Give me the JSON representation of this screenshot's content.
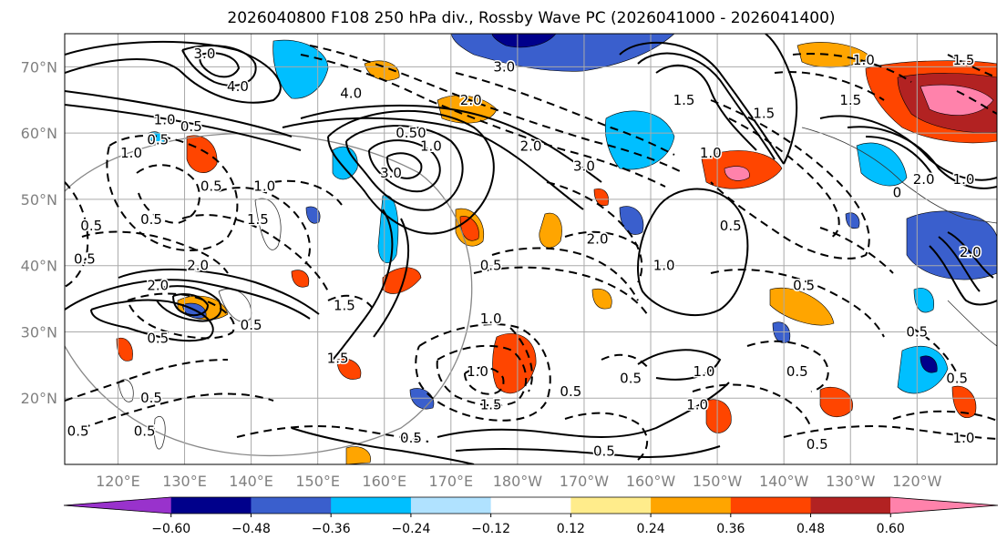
{
  "chart_data": {
    "type": "map-contour",
    "title": "2026040800 F108 250 hPa div., Rossby Wave PC (2026041000 - 2026041400)",
    "x_range_deg_east": [
      112,
      252
    ],
    "y_range_deg_north": [
      10,
      75
    ],
    "lat_ticks": [
      {
        "value": 70,
        "label": "70°N"
      },
      {
        "value": 60,
        "label": "60°N"
      },
      {
        "value": 50,
        "label": "50°N"
      },
      {
        "value": 40,
        "label": "40°N"
      },
      {
        "value": 30,
        "label": "30°N"
      },
      {
        "value": 20,
        "label": "20°N"
      }
    ],
    "lon_ticks": [
      {
        "value": 120,
        "label": "120°E"
      },
      {
        "value": 130,
        "label": "130°E"
      },
      {
        "value": 140,
        "label": "140°E"
      },
      {
        "value": 150,
        "label": "150°E"
      },
      {
        "value": 160,
        "label": "160°E"
      },
      {
        "value": 170,
        "label": "170°E"
      },
      {
        "value": 180,
        "label": "180°W"
      },
      {
        "value": 190,
        "label": "170°W"
      },
      {
        "value": 200,
        "label": "160°W"
      },
      {
        "value": 210,
        "label": "150°W"
      },
      {
        "value": 220,
        "label": "140°W"
      },
      {
        "value": 230,
        "label": "130°W"
      },
      {
        "value": 240,
        "label": "120°W"
      }
    ],
    "colorbar": {
      "colors": [
        "#9932cc",
        "#00008b",
        "#3a5fcd",
        "#00bfff",
        "#b0e2ff",
        "#ffffff",
        "#ffec8b",
        "#ffa500",
        "#ff4500",
        "#b22222",
        "#ff82ab"
      ],
      "ticks": [
        "−0.60",
        "−0.48",
        "−0.36",
        "−0.24",
        "−0.12",
        "0.12",
        "0.24",
        "0.36",
        "0.48",
        "0.60"
      ],
      "extend": "both"
    },
    "contour_labels": [
      {
        "lon": 133,
        "lat": 72,
        "text": "3.0"
      },
      {
        "lon": 138,
        "lat": 67,
        "text": "4.0"
      },
      {
        "lon": 127,
        "lat": 62,
        "text": "1.0"
      },
      {
        "lon": 131,
        "lat": 61,
        "text": "0.5"
      },
      {
        "lon": 122,
        "lat": 57,
        "text": "1.0"
      },
      {
        "lon": 155,
        "lat": 66,
        "text": "4.0"
      },
      {
        "lon": 164,
        "lat": 60,
        "text": "0.50"
      },
      {
        "lon": 167,
        "lat": 58,
        "text": "1.0"
      },
      {
        "lon": 161,
        "lat": 54,
        "text": "3.0"
      },
      {
        "lon": 178,
        "lat": 70,
        "text": "3.0"
      },
      {
        "lon": 173,
        "lat": 65,
        "text": "2.0"
      },
      {
        "lon": 182,
        "lat": 58,
        "text": "2.0"
      },
      {
        "lon": 190,
        "lat": 55,
        "text": "3.0"
      },
      {
        "lon": 205,
        "lat": 65,
        "text": "1.5"
      },
      {
        "lon": 209,
        "lat": 57,
        "text": "1.0"
      },
      {
        "lon": 217,
        "lat": 63,
        "text": "1.5"
      },
      {
        "lon": 232,
        "lat": 71,
        "text": "1.0"
      },
      {
        "lon": 247,
        "lat": 71,
        "text": "1.5"
      },
      {
        "lon": 230,
        "lat": 65,
        "text": "1.5"
      },
      {
        "lon": 237,
        "lat": 51,
        "text": "0"
      },
      {
        "lon": 241,
        "lat": 53,
        "text": "2.0"
      },
      {
        "lon": 247,
        "lat": 53,
        "text": "1.0"
      },
      {
        "lon": 248,
        "lat": 42,
        "text": "2.0"
      },
      {
        "lon": 212,
        "lat": 46,
        "text": "0.5"
      },
      {
        "lon": 202,
        "lat": 40,
        "text": "1.0"
      },
      {
        "lon": 192,
        "lat": 44,
        "text": "2.0"
      },
      {
        "lon": 176,
        "lat": 40,
        "text": "0.5"
      },
      {
        "lon": 176,
        "lat": 32,
        "text": "1.0"
      },
      {
        "lon": 223,
        "lat": 37,
        "text": "0.5"
      },
      {
        "lon": 240,
        "lat": 30,
        "text": "0.5"
      },
      {
        "lon": 246,
        "lat": 23,
        "text": "0.5"
      },
      {
        "lon": 247,
        "lat": 14,
        "text": "1.0"
      },
      {
        "lon": 222,
        "lat": 24,
        "text": "0.5"
      },
      {
        "lon": 208,
        "lat": 24,
        "text": "1.0"
      },
      {
        "lon": 207,
        "lat": 19,
        "text": "1.0"
      },
      {
        "lon": 197,
        "lat": 23,
        "text": "0.5"
      },
      {
        "lon": 188,
        "lat": 21,
        "text": "0.5"
      },
      {
        "lon": 174,
        "lat": 24,
        "text": "1.0"
      },
      {
        "lon": 176,
        "lat": 19,
        "text": "1.5"
      },
      {
        "lon": 193,
        "lat": 12,
        "text": "0.5"
      },
      {
        "lon": 225,
        "lat": 13,
        "text": "0.5"
      },
      {
        "lon": 164,
        "lat": 14,
        "text": "0.5"
      },
      {
        "lon": 124,
        "lat": 15,
        "text": "0.5"
      },
      {
        "lon": 114,
        "lat": 15,
        "text": "0.5"
      },
      {
        "lon": 125,
        "lat": 20,
        "text": "0.5"
      },
      {
        "lon": 126,
        "lat": 29,
        "text": "0.5"
      },
      {
        "lon": 140,
        "lat": 31,
        "text": "0.5"
      },
      {
        "lon": 153,
        "lat": 26,
        "text": "1.5"
      },
      {
        "lon": 126,
        "lat": 37,
        "text": "2.0"
      },
      {
        "lon": 125,
        "lat": 47,
        "text": "0.5"
      },
      {
        "lon": 115,
        "lat": 41,
        "text": "0.5"
      },
      {
        "lon": 116,
        "lat": 46,
        "text": "0.5"
      },
      {
        "lon": 134,
        "lat": 52,
        "text": "0.5"
      },
      {
        "lon": 141,
        "lat": 47,
        "text": "1.5"
      },
      {
        "lon": 142,
        "lat": 52,
        "text": "1.0"
      },
      {
        "lon": 132,
        "lat": 40,
        "text": "2.0"
      },
      {
        "lon": 154,
        "lat": 34,
        "text": "1.5"
      },
      {
        "lon": 126,
        "lat": 59,
        "text": "0.5"
      }
    ]
  }
}
